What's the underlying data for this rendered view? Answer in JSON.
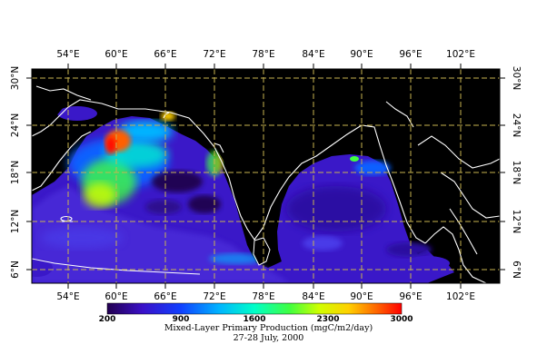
{
  "map": {
    "lon_labels": [
      "54°E",
      "60°E",
      "66°E",
      "72°E",
      "78°E",
      "84°E",
      "90°E",
      "96°E",
      "102°E"
    ],
    "lat_labels_left": [
      "30°N",
      "24°N",
      "18°N",
      "12°N",
      "6°N"
    ],
    "lat_labels_right": [
      "30°N",
      "24°N",
      "18°N",
      "12°N",
      "6°N"
    ],
    "colors": {
      "ocean_low": "#3a18c8",
      "land": "#000000",
      "coast": "#ffffff",
      "grid": "#c8b450"
    }
  },
  "colorbar": {
    "tick_labels": [
      "200",
      "900",
      "1600",
      "2300",
      "3000"
    ],
    "stops": [
      "#230050",
      "#3a10c8",
      "#1040ff",
      "#00b4ff",
      "#00ffc8",
      "#40ff40",
      "#d0ff00",
      "#ffd000",
      "#ff6000",
      "#ff0000"
    ]
  },
  "caption": {
    "title": "Mixed-Layer Primary Production (mgC/m2/day)",
    "date": "27-28 July, 2000"
  }
}
